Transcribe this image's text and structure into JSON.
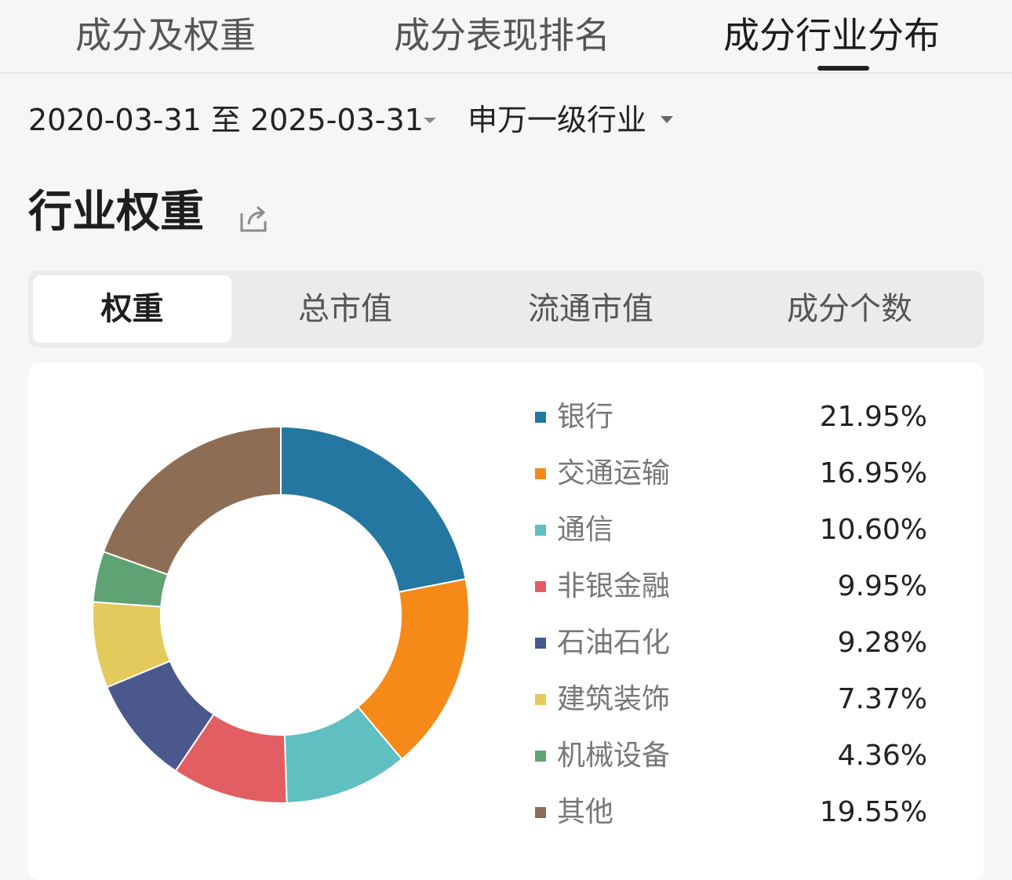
{
  "top_tabs": [
    {
      "label": "成分及权重",
      "active": false
    },
    {
      "label": "成分表现排名",
      "active": false
    },
    {
      "label": "成分行业分布",
      "active": true
    }
  ],
  "filters": {
    "date_range": "2020-03-31 至 2025-03-31",
    "classification": "申万一级行业"
  },
  "section": {
    "title": "行业权重",
    "share_icon": "share-icon"
  },
  "segments": [
    {
      "label": "权重",
      "active": true
    },
    {
      "label": "总市值",
      "active": false
    },
    {
      "label": "流通市值",
      "active": false
    },
    {
      "label": "成分个数",
      "active": false
    }
  ],
  "chart_data": {
    "type": "pie",
    "donut": true,
    "legend": "right",
    "categories": [
      "银行",
      "交通运输",
      "通信",
      "非银金融",
      "石油石化",
      "建筑装饰",
      "机械设备",
      "其他"
    ],
    "values": [
      21.95,
      16.95,
      10.6,
      9.95,
      9.28,
      7.37,
      4.36,
      19.55
    ],
    "value_labels": [
      "21.95%",
      "16.95%",
      "10.60%",
      "9.95%",
      "9.28%",
      "7.37%",
      "4.36%",
      "19.55%"
    ],
    "colors": [
      "#2477a1",
      "#f58a18",
      "#5fbfc1",
      "#e25e62",
      "#4b588e",
      "#e4c95c",
      "#5fa274",
      "#8d6e55"
    ]
  }
}
